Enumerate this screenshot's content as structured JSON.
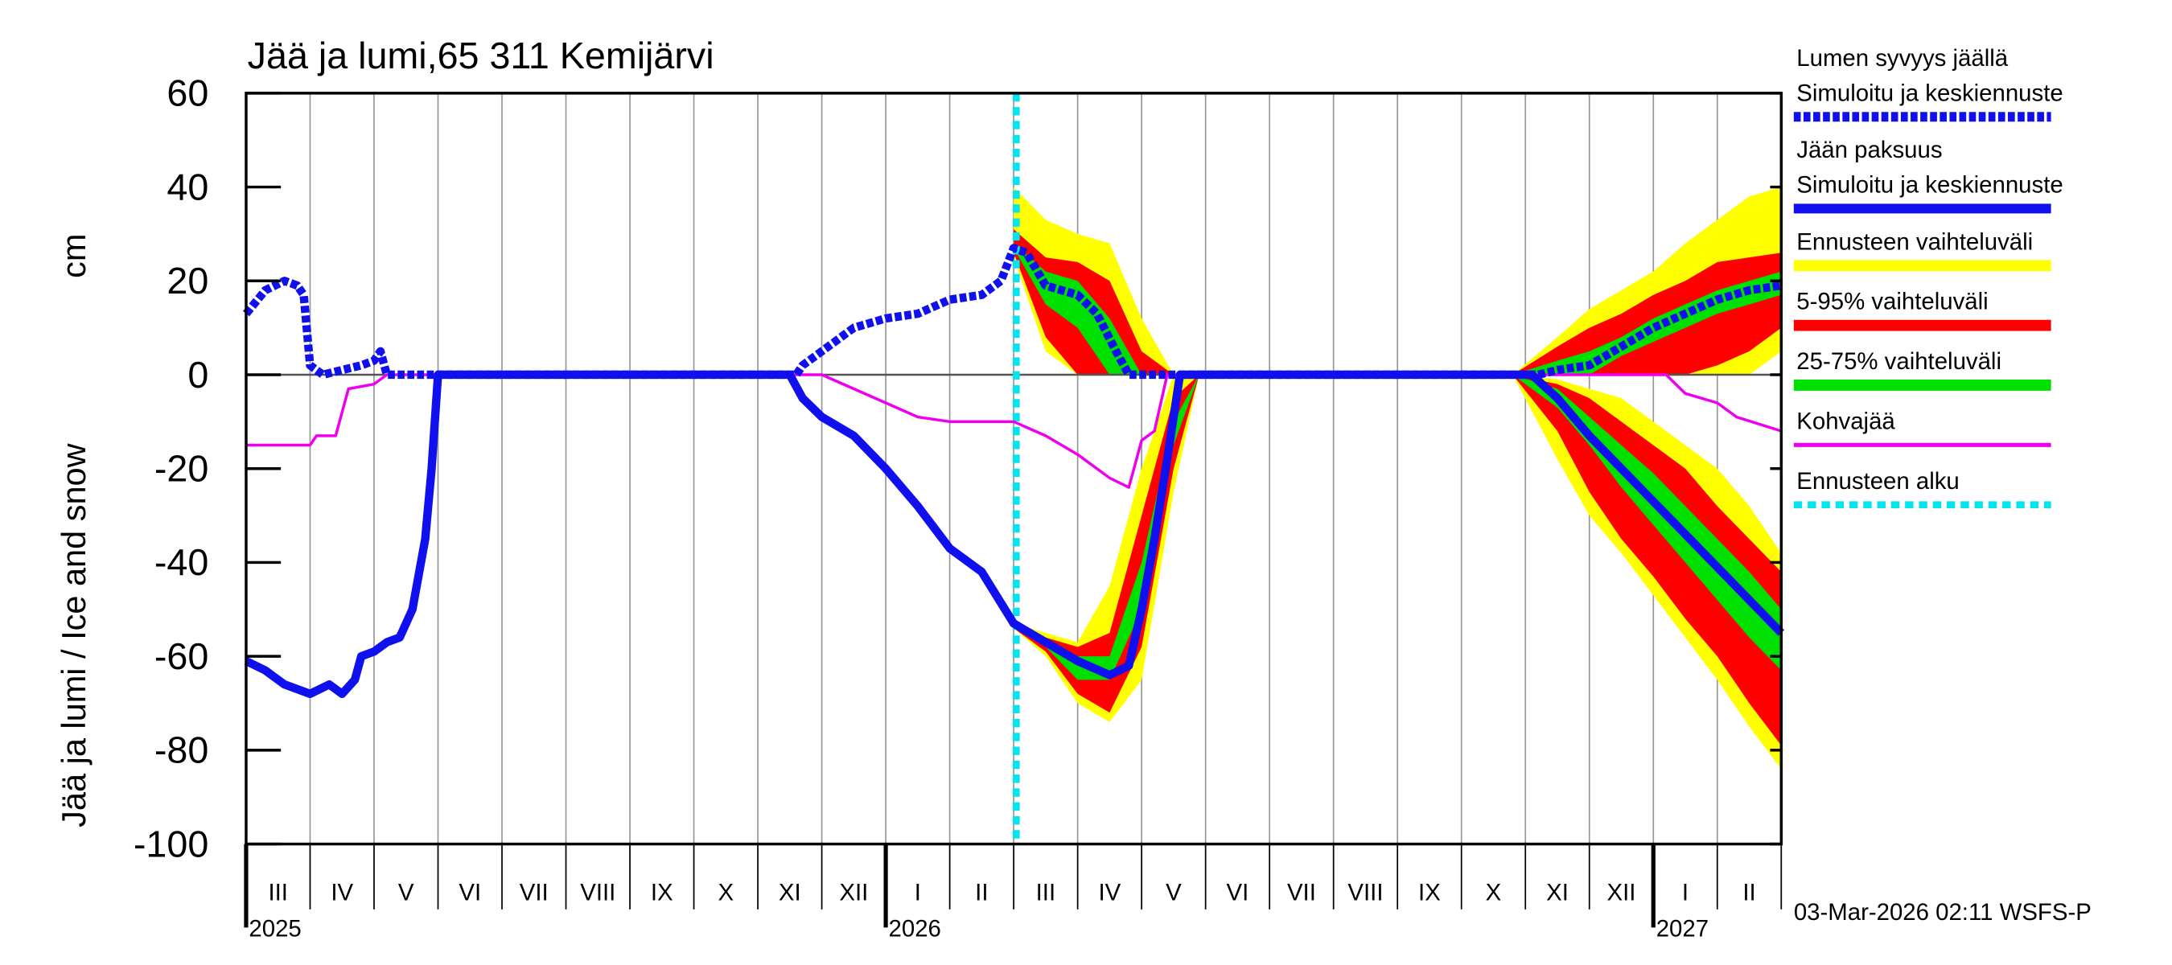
{
  "chart_data": {
    "type": "line",
    "title": "Jää ja lumi,65 311 Kemijärvi",
    "ylabel": "Jää ja lumi / Ice and snow",
    "yunit": "cm",
    "footer": "03-Mar-2026 02:11 WSFS-P",
    "ylim": [
      -100,
      60
    ],
    "yticks": [
      60,
      40,
      20,
      0,
      -20,
      -40,
      -60,
      -80,
      -100
    ],
    "xlim": [
      0,
      24
    ],
    "xticks": [
      0,
      1,
      2,
      3,
      4,
      5,
      6,
      7,
      8,
      9,
      10,
      11,
      12,
      13,
      14,
      15,
      16,
      17,
      18,
      19,
      20,
      21,
      22,
      23,
      24
    ],
    "month_labels": [
      "III",
      "IV",
      "V",
      "VI",
      "VII",
      "VIII",
      "IX",
      "X",
      "XI",
      "XII",
      "I",
      "II",
      "III",
      "IV",
      "V",
      "VI",
      "VII",
      "VIII",
      "IX",
      "X",
      "XI",
      "XII",
      "I",
      "II"
    ],
    "year_labels": [
      {
        "value": 0,
        "label": "2025"
      },
      {
        "value": 10,
        "label": "2026"
      },
      {
        "value": 22,
        "label": "2027"
      }
    ],
    "bands": [
      {
        "name": "Ennusteen vaihteluväli",
        "color": "#ffff00",
        "areas": [
          {
            "x": [
              12.0,
              12.5,
              13.0,
              13.5,
              14.0,
              14.5
            ],
            "upper": [
              40,
              33,
              30,
              28,
              12,
              0
            ],
            "lower": [
              25,
              5,
              0,
              0,
              0,
              0
            ]
          },
          {
            "x": [
              12.0,
              12.5,
              13.0,
              13.5,
              14.0,
              14.5,
              14.9
            ],
            "upper": [
              -53,
              -55,
              -57,
              -45,
              -20,
              0,
              0
            ],
            "lower": [
              -54,
              -60,
              -70,
              -74,
              -65,
              -25,
              0
            ]
          },
          {
            "x": [
              19.8,
              20.5,
              21,
              21.5,
              22,
              22.5,
              23,
              23.5,
              24
            ],
            "upper": [
              0,
              8,
              14,
              18,
              22,
              28,
              33,
              38,
              40
            ],
            "lower": [
              0,
              0,
              0,
              0,
              0,
              0,
              0,
              0,
              5
            ]
          },
          {
            "x": [
              19.8,
              20.5,
              21,
              21.5,
              22,
              22.5,
              23,
              23.5,
              24
            ],
            "upper": [
              0,
              -1,
              -3,
              -5,
              -10,
              -15,
              -20,
              -28,
              -38
            ],
            "lower": [
              0,
              -18,
              -30,
              -38,
              -47,
              -56,
              -65,
              -75,
              -84
            ]
          }
        ]
      },
      {
        "name": "5-95% vaihteluväli",
        "color": "#ff0000",
        "areas": [
          {
            "x": [
              12.0,
              12.5,
              13.0,
              13.5,
              14.0,
              14.5
            ],
            "upper": [
              31,
              25,
              24,
              20,
              5,
              0
            ],
            "lower": [
              26,
              8,
              0,
              0,
              0,
              0
            ]
          },
          {
            "x": [
              12.0,
              12.5,
              13.0,
              13.5,
              14.0,
              14.5,
              14.9
            ],
            "upper": [
              -53,
              -56,
              -58,
              -55,
              -30,
              -5,
              0
            ],
            "lower": [
              -54,
              -59,
              -68,
              -72,
              -58,
              -20,
              0
            ]
          },
          {
            "x": [
              19.8,
              20.5,
              21,
              21.5,
              22,
              22.5,
              23,
              23.5,
              24
            ],
            "upper": [
              0,
              6,
              10,
              13,
              17,
              20,
              24,
              25,
              26
            ],
            "lower": [
              0,
              0,
              0,
              0,
              0,
              0,
              2,
              5,
              10
            ]
          },
          {
            "x": [
              19.8,
              20.5,
              21,
              21.5,
              22,
              22.5,
              23,
              23.5,
              24
            ],
            "upper": [
              0,
              -2,
              -5,
              -10,
              -15,
              -20,
              -28,
              -35,
              -42
            ],
            "lower": [
              0,
              -12,
              -25,
              -35,
              -43,
              -52,
              -60,
              -70,
              -79
            ]
          }
        ]
      },
      {
        "name": "25-75% vaihteluväli",
        "color": "#00e000",
        "areas": [
          {
            "x": [
              12.0,
              12.5,
              13.0,
              13.5,
              14.0,
              14.5
            ],
            "upper": [
              28,
              22,
              20,
              12,
              0,
              0
            ],
            "lower": [
              27,
              15,
              10,
              0,
              0,
              0
            ]
          },
          {
            "x": [
              12.0,
              12.5,
              13.0,
              13.5,
              14.0,
              14.5,
              14.9
            ],
            "upper": [
              -53,
              -56,
              -60,
              -60,
              -40,
              -10,
              0
            ],
            "lower": [
              -54,
              -58,
              -65,
              -65,
              -50,
              -15,
              0
            ]
          },
          {
            "x": [
              19.8,
              20.5,
              21,
              21.5,
              22,
              22.5,
              23,
              23.5,
              24
            ],
            "upper": [
              0,
              3,
              5,
              8,
              12,
              15,
              18,
              20,
              22
            ],
            "lower": [
              0,
              0,
              0,
              4,
              7,
              10,
              13,
              15,
              17
            ]
          },
          {
            "x": [
              19.8,
              20.5,
              21,
              21.5,
              22,
              22.5,
              23,
              23.5,
              24
            ],
            "upper": [
              0,
              -3,
              -9,
              -15,
              -21,
              -28,
              -35,
              -42,
              -50
            ],
            "lower": [
              0,
              -7,
              -15,
              -24,
              -32,
              -40,
              -48,
              -56,
              -63
            ]
          }
        ]
      }
    ],
    "series": [
      {
        "name": "Lumen syvyys jäällä",
        "note": "Simuloitu ja keskiennuste",
        "color": "#1010ee",
        "dashed": true,
        "x": [
          0,
          0.3,
          0.6,
          0.8,
          0.9,
          1.0,
          1.2,
          1.5,
          1.8,
          2.0,
          2.1,
          2.2,
          8.6,
          8.7,
          9.0,
          9.3,
          9.5,
          10,
          10.5,
          11,
          11.5,
          11.8,
          12,
          12.2,
          12.5,
          13,
          13.3,
          13.6,
          13.8,
          20.2,
          20.5,
          21,
          21.5,
          22,
          22.5,
          23,
          23.5,
          24
        ],
        "values": [
          13,
          18,
          20,
          19,
          17,
          2,
          0,
          1,
          2,
          3,
          5,
          0,
          0,
          2,
          5,
          8,
          10,
          12,
          13,
          16,
          17,
          20,
          27,
          26,
          19,
          17,
          13,
          5,
          0,
          0,
          1,
          2,
          6,
          10,
          13,
          16,
          18,
          19
        ]
      },
      {
        "name": "Jään paksuus",
        "note": "Simuloitu ja keskiennuste",
        "color": "#1010ee",
        "dashed": false,
        "x": [
          0,
          0.3,
          0.6,
          1.0,
          1.3,
          1.5,
          1.7,
          1.8,
          2.0,
          2.2,
          2.4,
          2.6,
          2.8,
          2.9,
          3.0,
          8.5,
          8.7,
          9.0,
          9.5,
          10,
          10.5,
          11,
          11.5,
          12,
          12.5,
          13,
          13.5,
          13.8,
          14.0,
          14.2,
          14.4,
          14.6,
          20.1,
          20.5,
          21,
          21.5,
          22,
          22.5,
          23,
          23.5,
          24
        ],
        "values": [
          -61,
          -63,
          -66,
          -68,
          -66,
          -68,
          -65,
          -60,
          -59,
          -57,
          -56,
          -50,
          -35,
          -20,
          0,
          0,
          -5,
          -9,
          -13,
          -20,
          -28,
          -37,
          -42,
          -53,
          -57,
          -61,
          -64,
          -62,
          -50,
          -35,
          -18,
          0,
          0,
          -5,
          -13,
          -20,
          -27,
          -34,
          -41,
          -48,
          -55
        ]
      },
      {
        "name": "Kohvajää",
        "color": "#ee00ee",
        "dashed": false,
        "x": [
          0,
          1.0,
          1.1,
          1.4,
          1.5,
          1.6,
          2.0,
          2.2,
          9.0,
          9.5,
          10,
          10.5,
          11,
          12,
          12.5,
          13,
          13.5,
          13.8,
          14.0,
          14.2,
          14.4,
          22.2,
          22.5,
          23,
          23.3,
          24
        ],
        "values": [
          -15,
          -15,
          -13,
          -13,
          -8,
          -3,
          -2,
          0,
          0,
          -3,
          -6,
          -9,
          -10,
          -10,
          -13,
          -17,
          -22,
          -24,
          -14,
          -12,
          0,
          0,
          -4,
          -6,
          -9,
          -12
        ]
      }
    ],
    "forecast_start": {
      "name": "Ennusteen alku",
      "x": 12.04,
      "color": "#00e5ee"
    }
  }
}
